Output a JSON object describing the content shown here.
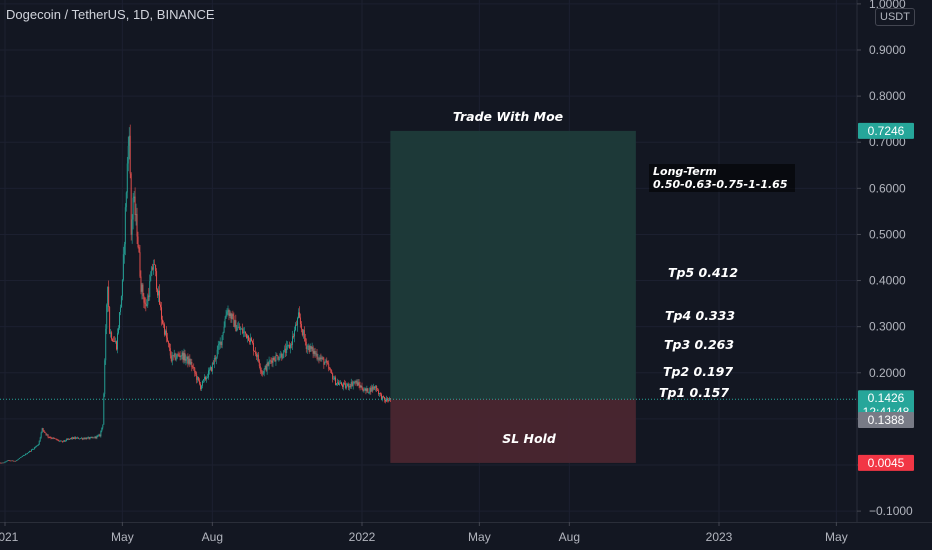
{
  "header": {
    "title": "Dogecoin / TetherUS, 1D, BINANCE",
    "currency": "USDT"
  },
  "colors": {
    "background": "#131722",
    "up": "#26a69a",
    "down": "#ef5350",
    "profit_zone": "#1e3b3a",
    "loss_zone": "#4a2630",
    "target_badge": "#26a69a",
    "price_badge": "#2962ff",
    "stop_badge": "#f23645"
  },
  "chart_data": {
    "type": "candlestick",
    "ylim": [
      -0.12,
      1.0
    ],
    "y_ticks": [
      "1.0000",
      "0.9000",
      "0.8000",
      "0.7000",
      "0.6000",
      "0.5000",
      "0.4000",
      "0.3000",
      "0.2000",
      "0.1000",
      "0.0000",
      "−0.1000"
    ],
    "y_tick_values": [
      1.0,
      0.9,
      0.8,
      0.7,
      0.6,
      0.5,
      0.4,
      0.3,
      0.2,
      0.1,
      0.0,
      -0.1
    ],
    "x_ticks": [
      {
        "label": "2021",
        "date": "2021-01-01"
      },
      {
        "label": "May",
        "date": "2021-05-01"
      },
      {
        "label": "Aug",
        "date": "2021-08-01"
      },
      {
        "label": "2022",
        "date": "2022-01-01"
      },
      {
        "label": "May",
        "date": "2022-05-01"
      },
      {
        "label": "Aug",
        "date": "2022-08-01"
      },
      {
        "label": "2023",
        "date": "2023-01-01"
      },
      {
        "label": "May",
        "date": "2023-05-01"
      }
    ],
    "price_path": [
      [
        "2020-12-20",
        0.0045
      ],
      [
        "2020-12-30",
        0.0047
      ],
      [
        "2021-01-04",
        0.0098
      ],
      [
        "2021-01-12",
        0.0088
      ],
      [
        "2021-01-29",
        0.034
      ],
      [
        "2021-02-04",
        0.045
      ],
      [
        "2021-02-08",
        0.078
      ],
      [
        "2021-02-14",
        0.062
      ],
      [
        "2021-02-28",
        0.05
      ],
      [
        "2021-03-10",
        0.058
      ],
      [
        "2021-03-31",
        0.058
      ],
      [
        "2021-04-08",
        0.064
      ],
      [
        "2021-04-11",
        0.09
      ],
      [
        "2021-04-15",
        0.35
      ],
      [
        "2021-04-16",
        0.4
      ],
      [
        "2021-04-18",
        0.29
      ],
      [
        "2021-04-25",
        0.26
      ],
      [
        "2021-05-01",
        0.39
      ],
      [
        "2021-05-05",
        0.6
      ],
      [
        "2021-05-08",
        0.74
      ],
      [
        "2021-05-10",
        0.5
      ],
      [
        "2021-05-12",
        0.58
      ],
      [
        "2021-05-16",
        0.51
      ],
      [
        "2021-05-20",
        0.39
      ],
      [
        "2021-05-25",
        0.34
      ],
      [
        "2021-06-02",
        0.44
      ],
      [
        "2021-06-10",
        0.32
      ],
      [
        "2021-06-20",
        0.23
      ],
      [
        "2021-06-30",
        0.24
      ],
      [
        "2021-07-10",
        0.22
      ],
      [
        "2021-07-20",
        0.17
      ],
      [
        "2021-07-31",
        0.21
      ],
      [
        "2021-08-10",
        0.27
      ],
      [
        "2021-08-16",
        0.34
      ],
      [
        "2021-08-25",
        0.3
      ],
      [
        "2021-09-07",
        0.28
      ],
      [
        "2021-09-15",
        0.24
      ],
      [
        "2021-09-21",
        0.2
      ],
      [
        "2021-10-01",
        0.23
      ],
      [
        "2021-10-12",
        0.24
      ],
      [
        "2021-10-20",
        0.26
      ],
      [
        "2021-10-28",
        0.32
      ],
      [
        "2021-11-05",
        0.26
      ],
      [
        "2021-11-15",
        0.24
      ],
      [
        "2021-11-25",
        0.22
      ],
      [
        "2021-12-05",
        0.18
      ],
      [
        "2021-12-15",
        0.17
      ],
      [
        "2021-12-25",
        0.18
      ],
      [
        "2022-01-05",
        0.16
      ],
      [
        "2022-01-15",
        0.17
      ],
      [
        "2022-01-20",
        0.15
      ],
      [
        "2022-01-24",
        0.14
      ],
      [
        "2022-01-30",
        0.1426
      ]
    ],
    "current_price": 0.1426,
    "previous_close": 0.1388,
    "countdown": "12:41:48",
    "position": {
      "type": "long",
      "start_date": "2022-01-30",
      "end_date": "2022-10-08",
      "entry": 0.1426,
      "target": 0.7246,
      "stop": 0.0045
    },
    "badges": {
      "target": "0.7246",
      "price": "0.1426",
      "countdown": "12:41:48",
      "prev_close": "0.1388",
      "stop": "0.0045"
    },
    "annotations": {
      "trade_title": "Trade With Moe",
      "long_term_line1": "Long-Term",
      "long_term_line2": "0.50-0.63-0.75-1-1.65",
      "tp5": "Tp5 0.412",
      "tp4": "Tp4 0.333",
      "tp3": "Tp3 0.263",
      "tp2": "Tp2 0.197",
      "tp1": "Tp1 0.157",
      "sl": "SL Hold"
    }
  }
}
